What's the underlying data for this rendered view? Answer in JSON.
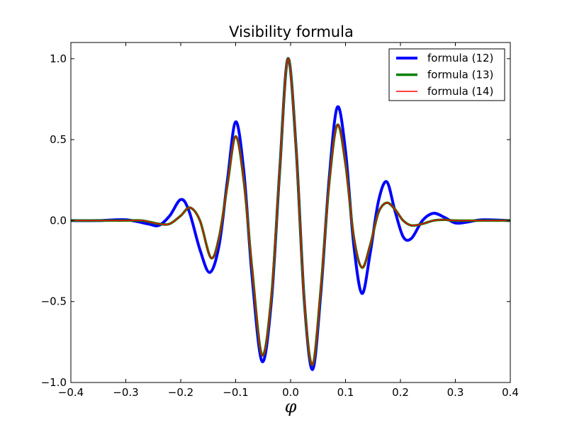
{
  "chart_data": {
    "type": "line",
    "title": "Visibility formula",
    "xlabel": "φ",
    "ylabel": "",
    "xlim": [
      -0.4,
      0.4
    ],
    "ylim": [
      -1.0,
      1.1
    ],
    "xticks": [
      -0.4,
      -0.3,
      -0.2,
      -0.1,
      0.0,
      0.1,
      0.2,
      0.3,
      0.4
    ],
    "xtick_labels": [
      "−0.4",
      "−0.3",
      "−0.2",
      "−0.1",
      "0.0",
      "0.1",
      "0.2",
      "0.3",
      "0.4"
    ],
    "yticks": [
      -1.0,
      -0.5,
      0.0,
      0.5,
      1.0
    ],
    "ytick_labels": [
      "−1.0",
      "−0.5",
      "0.0",
      "0.5",
      "1.0"
    ],
    "grid": false,
    "legend_position": "top-right",
    "series": [
      {
        "name": "formula (12)",
        "color": "#0000ff",
        "x": [
          -0.4,
          -0.35,
          -0.3,
          -0.26,
          -0.24,
          -0.22,
          -0.2,
          -0.185,
          -0.165,
          -0.147,
          -0.13,
          -0.115,
          -0.1,
          -0.085,
          -0.07,
          -0.052,
          -0.035,
          -0.02,
          -0.005,
          0.01,
          0.025,
          0.04,
          0.055,
          0.07,
          0.085,
          0.1,
          0.115,
          0.13,
          0.145,
          0.16,
          0.175,
          0.19,
          0.205,
          0.22,
          0.24,
          0.26,
          0.28,
          0.3,
          0.32,
          0.35,
          0.4
        ],
        "y": [
          0.0,
          0.0,
          0.005,
          -0.02,
          -0.03,
          0.03,
          0.13,
          0.06,
          -0.18,
          -0.32,
          -0.15,
          0.25,
          0.61,
          0.3,
          -0.35,
          -0.87,
          -0.5,
          0.3,
          1.0,
          0.45,
          -0.5,
          -0.92,
          -0.45,
          0.25,
          0.7,
          0.43,
          -0.15,
          -0.45,
          -0.2,
          0.12,
          0.24,
          0.06,
          -0.1,
          -0.11,
          0.0,
          0.045,
          0.02,
          -0.015,
          -0.01,
          0.005,
          0.0
        ]
      },
      {
        "name": "formula (13)",
        "color": "#008000",
        "x": [
          -0.4,
          -0.3,
          -0.27,
          -0.24,
          -0.22,
          -0.2,
          -0.183,
          -0.165,
          -0.145,
          -0.13,
          -0.115,
          -0.1,
          -0.085,
          -0.07,
          -0.052,
          -0.035,
          -0.02,
          -0.005,
          0.01,
          0.025,
          0.04,
          0.055,
          0.07,
          0.085,
          0.1,
          0.115,
          0.13,
          0.145,
          0.16,
          0.175,
          0.19,
          0.205,
          0.22,
          0.24,
          0.26,
          0.28,
          0.3,
          0.35,
          0.4
        ],
        "y": [
          0.0,
          0.0,
          0.0,
          -0.02,
          -0.02,
          0.03,
          0.08,
          0.0,
          -0.23,
          -0.1,
          0.22,
          0.52,
          0.24,
          -0.3,
          -0.83,
          -0.47,
          0.3,
          1.0,
          0.45,
          -0.5,
          -0.89,
          -0.42,
          0.22,
          0.59,
          0.35,
          -0.1,
          -0.29,
          -0.15,
          0.05,
          0.11,
          0.07,
          0.0,
          -0.03,
          -0.02,
          0.0,
          0.005,
          0.0,
          0.0,
          0.0
        ]
      },
      {
        "name": "formula (14)",
        "color": "#ff0000",
        "x": [
          -0.4,
          -0.3,
          -0.27,
          -0.24,
          -0.22,
          -0.2,
          -0.183,
          -0.165,
          -0.145,
          -0.13,
          -0.115,
          -0.1,
          -0.085,
          -0.07,
          -0.052,
          -0.035,
          -0.02,
          -0.005,
          0.01,
          0.025,
          0.04,
          0.055,
          0.07,
          0.085,
          0.1,
          0.115,
          0.13,
          0.145,
          0.16,
          0.175,
          0.19,
          0.205,
          0.22,
          0.24,
          0.26,
          0.28,
          0.3,
          0.35,
          0.4
        ],
        "y": [
          0.0,
          0.0,
          0.0,
          -0.02,
          -0.02,
          0.03,
          0.08,
          0.0,
          -0.23,
          -0.1,
          0.22,
          0.52,
          0.24,
          -0.3,
          -0.83,
          -0.47,
          0.3,
          1.0,
          0.45,
          -0.5,
          -0.89,
          -0.42,
          0.22,
          0.59,
          0.35,
          -0.1,
          -0.29,
          -0.15,
          0.05,
          0.11,
          0.07,
          0.0,
          -0.03,
          -0.02,
          0.0,
          0.005,
          0.0,
          0.0,
          0.0
        ]
      }
    ]
  }
}
